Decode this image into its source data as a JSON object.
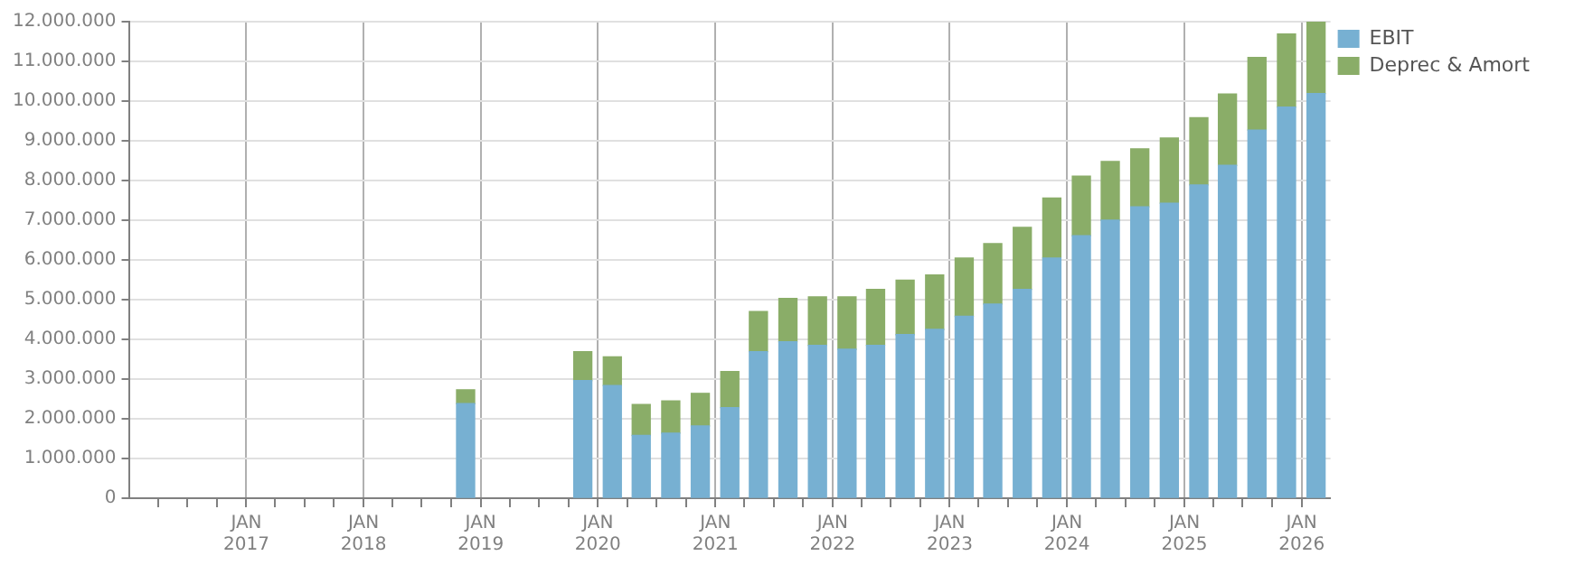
{
  "chart_data": {
    "type": "bar",
    "stacked": true,
    "x": [
      "2018-11-15",
      "2019-11-15",
      "2020-02-15",
      "2020-05-15",
      "2020-08-15",
      "2020-11-15",
      "2021-02-15",
      "2021-05-15",
      "2021-08-15",
      "2021-11-15",
      "2022-02-15",
      "2022-05-15",
      "2022-08-15",
      "2022-11-15",
      "2023-02-15",
      "2023-05-15",
      "2023-08-15",
      "2023-11-15",
      "2024-02-15",
      "2024-05-15",
      "2024-08-15",
      "2024-11-15",
      "2025-02-15",
      "2025-05-15",
      "2025-08-15",
      "2025-11-15",
      "2026-02-15"
    ],
    "series": [
      {
        "name": "EBIT",
        "color": "#77b0d2",
        "values": [
          2380000,
          2960000,
          2840000,
          1580000,
          1640000,
          1820000,
          2280000,
          3690000,
          3940000,
          3850000,
          3750000,
          3850000,
          4120000,
          4250000,
          4580000,
          4890000,
          5260000,
          6050000,
          6610000,
          7000000,
          7340000,
          7430000,
          7890000,
          8380000,
          9270000,
          9850000,
          10190000
        ]
      },
      {
        "name": "Deprec & Amort",
        "color": "#8aad68",
        "values": [
          350000,
          730000,
          720000,
          780000,
          810000,
          820000,
          910000,
          1010000,
          1090000,
          1220000,
          1320000,
          1410000,
          1370000,
          1370000,
          1470000,
          1520000,
          1560000,
          1510000,
          1500000,
          1480000,
          1460000,
          1640000,
          1690000,
          1800000,
          1830000,
          1840000,
          1810000
        ]
      }
    ],
    "ylim": [
      0,
      12000000
    ],
    "yticks": [
      {
        "value": 0,
        "label": "0"
      },
      {
        "value": 1000000,
        "label": "1.000.000"
      },
      {
        "value": 2000000,
        "label": "2.000.000"
      },
      {
        "value": 3000000,
        "label": "3.000.000"
      },
      {
        "value": 4000000,
        "label": "4.000.000"
      },
      {
        "value": 5000000,
        "label": "5.000.000"
      },
      {
        "value": 6000000,
        "label": "6.000.000"
      },
      {
        "value": 7000000,
        "label": "7.000.000"
      },
      {
        "value": 8000000,
        "label": "8.000.000"
      },
      {
        "value": 9000000,
        "label": "9.000.000"
      },
      {
        "value": 10000000,
        "label": "10.000.000"
      },
      {
        "value": 11000000,
        "label": "11.000.000"
      },
      {
        "value": 12000000,
        "label": "12.000.000"
      }
    ],
    "xlim": [
      "2016-01-01",
      "2026-04-01"
    ],
    "xticks": [
      {
        "value": "2016-04-01",
        "label": null
      },
      {
        "value": "2016-07-01",
        "label": null
      },
      {
        "value": "2016-10-01",
        "label": null
      },
      {
        "value": "2017-01-01",
        "label": "JAN\n2017"
      },
      {
        "value": "2017-04-01",
        "label": null
      },
      {
        "value": "2017-07-01",
        "label": null
      },
      {
        "value": "2017-10-01",
        "label": null
      },
      {
        "value": "2018-01-01",
        "label": "JAN\n2018"
      },
      {
        "value": "2018-04-01",
        "label": null
      },
      {
        "value": "2018-07-01",
        "label": null
      },
      {
        "value": "2018-10-01",
        "label": null
      },
      {
        "value": "2019-01-01",
        "label": "JAN\n2019"
      },
      {
        "value": "2019-04-01",
        "label": null
      },
      {
        "value": "2019-07-01",
        "label": null
      },
      {
        "value": "2019-10-01",
        "label": null
      },
      {
        "value": "2020-01-01",
        "label": "JAN\n2020"
      },
      {
        "value": "2020-04-01",
        "label": null
      },
      {
        "value": "2020-07-01",
        "label": null
      },
      {
        "value": "2020-10-01",
        "label": null
      },
      {
        "value": "2021-01-01",
        "label": "JAN\n2021"
      },
      {
        "value": "2021-04-01",
        "label": null
      },
      {
        "value": "2021-07-01",
        "label": null
      },
      {
        "value": "2021-10-01",
        "label": null
      },
      {
        "value": "2022-01-01",
        "label": "JAN\n2022"
      },
      {
        "value": "2022-04-01",
        "label": null
      },
      {
        "value": "2022-07-01",
        "label": null
      },
      {
        "value": "2022-10-01",
        "label": null
      },
      {
        "value": "2023-01-01",
        "label": "JAN\n2023"
      },
      {
        "value": "2023-04-01",
        "label": null
      },
      {
        "value": "2023-07-01",
        "label": null
      },
      {
        "value": "2023-10-01",
        "label": null
      },
      {
        "value": "2024-01-01",
        "label": "JAN\n2024"
      },
      {
        "value": "2024-04-01",
        "label": null
      },
      {
        "value": "2024-07-01",
        "label": null
      },
      {
        "value": "2024-10-01",
        "label": null
      },
      {
        "value": "2025-01-01",
        "label": "JAN\n2025"
      },
      {
        "value": "2025-04-01",
        "label": null
      },
      {
        "value": "2025-07-01",
        "label": null
      },
      {
        "value": "2025-10-01",
        "label": null
      },
      {
        "value": "2026-01-01",
        "label": "JAN\n2026"
      }
    ],
    "grid": true,
    "legend": "top right"
  }
}
